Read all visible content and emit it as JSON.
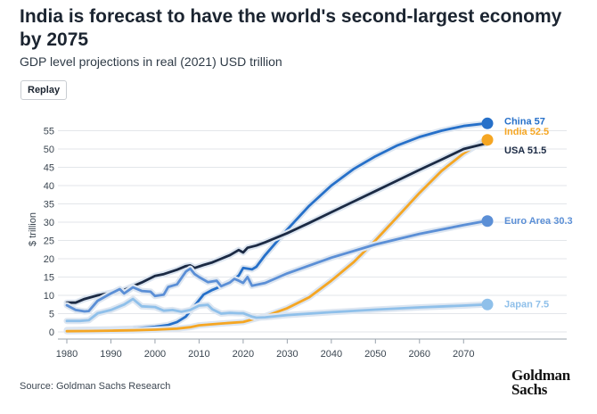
{
  "header": {
    "title": "India is forecast to have the world's second-largest economy by 2075",
    "subtitle": "GDP level projections in real (2021) USD trillion",
    "replay_label": "Replay"
  },
  "footer": {
    "source": "Source: Goldman Sachs Research",
    "logo_line1": "Goldman",
    "logo_line2": "Sachs"
  },
  "chart_data": {
    "type": "line",
    "title": "India is forecast to have the world's second-largest economy by 2075",
    "subtitle": "GDP level projections in real (2021) USD trillion",
    "xlabel": "",
    "ylabel": "$ trillion",
    "xlim": [
      1980,
      2075
    ],
    "ylim": [
      0,
      57
    ],
    "x_ticks": [
      1980,
      1990,
      2000,
      2010,
      2020,
      2030,
      2040,
      2050,
      2060,
      2070
    ],
    "y_ticks": [
      0,
      5,
      10,
      15,
      20,
      25,
      30,
      35,
      40,
      45,
      50,
      55
    ],
    "grid": "horizontal",
    "series": [
      {
        "name": "China",
        "end_label": "China 57",
        "color": "#2670c9",
        "points": [
          [
            1980,
            0.5
          ],
          [
            1985,
            0.6
          ],
          [
            1990,
            0.7
          ],
          [
            1995,
            0.9
          ],
          [
            2000,
            1.4
          ],
          [
            2003,
            1.9
          ],
          [
            2005,
            2.7
          ],
          [
            2007,
            4.2
          ],
          [
            2009,
            7.2
          ],
          [
            2011,
            10.2
          ],
          [
            2013,
            11.5
          ],
          [
            2015,
            12.5
          ],
          [
            2017,
            13.6
          ],
          [
            2019,
            15.4
          ],
          [
            2020,
            17.5
          ],
          [
            2022,
            17.1
          ],
          [
            2023,
            17.8
          ],
          [
            2025,
            21
          ],
          [
            2030,
            28
          ],
          [
            2035,
            34.5
          ],
          [
            2040,
            40
          ],
          [
            2045,
            44.5
          ],
          [
            2050,
            48
          ],
          [
            2055,
            51
          ],
          [
            2060,
            53.3
          ],
          [
            2065,
            55
          ],
          [
            2070,
            56.3
          ],
          [
            2075,
            57
          ]
        ]
      },
      {
        "name": "India",
        "end_label": "India 52.5",
        "color": "#f5a623",
        "points": [
          [
            1980,
            0.2
          ],
          [
            1985,
            0.25
          ],
          [
            1990,
            0.35
          ],
          [
            1995,
            0.45
          ],
          [
            2000,
            0.6
          ],
          [
            2005,
            0.9
          ],
          [
            2008,
            1.3
          ],
          [
            2010,
            1.8
          ],
          [
            2015,
            2.3
          ],
          [
            2020,
            2.7
          ],
          [
            2022,
            3.4
          ],
          [
            2025,
            4.3
          ],
          [
            2030,
            6.5
          ],
          [
            2035,
            9.5
          ],
          [
            2040,
            14
          ],
          [
            2045,
            19
          ],
          [
            2050,
            25
          ],
          [
            2055,
            31.5
          ],
          [
            2060,
            38
          ],
          [
            2065,
            44
          ],
          [
            2070,
            48.8
          ],
          [
            2075,
            52.5
          ]
        ]
      },
      {
        "name": "USA",
        "end_label": "USA 51.5",
        "color": "#1b2a44",
        "points": [
          [
            1980,
            8
          ],
          [
            1982,
            8
          ],
          [
            1984,
            9
          ],
          [
            1987,
            10
          ],
          [
            1990,
            10.7
          ],
          [
            1993,
            11.5
          ],
          [
            1997,
            13.5
          ],
          [
            2000,
            15.3
          ],
          [
            2002,
            15.8
          ],
          [
            2005,
            17
          ],
          [
            2007,
            18
          ],
          [
            2008,
            18.2
          ],
          [
            2009,
            17.5
          ],
          [
            2011,
            18.3
          ],
          [
            2013,
            19
          ],
          [
            2015,
            20
          ],
          [
            2017,
            21
          ],
          [
            2019,
            22.4
          ],
          [
            2020,
            21.7
          ],
          [
            2021,
            23
          ],
          [
            2023,
            23.6
          ],
          [
            2025,
            24.5
          ],
          [
            2030,
            27
          ],
          [
            2035,
            29.8
          ],
          [
            2040,
            32.7
          ],
          [
            2045,
            35.6
          ],
          [
            2050,
            38.5
          ],
          [
            2055,
            41.4
          ],
          [
            2060,
            44.3
          ],
          [
            2065,
            47.1
          ],
          [
            2070,
            50
          ],
          [
            2075,
            51.5
          ]
        ]
      },
      {
        "name": "Euro Area",
        "end_label": "Euro Area 30.3",
        "color": "#5b8fd6",
        "points": [
          [
            1980,
            7.3
          ],
          [
            1982,
            6
          ],
          [
            1984,
            5.6
          ],
          [
            1985,
            5.7
          ],
          [
            1987,
            8.5
          ],
          [
            1990,
            10.5
          ],
          [
            1992,
            11.7
          ],
          [
            1993,
            10.5
          ],
          [
            1995,
            12.2
          ],
          [
            1997,
            11.2
          ],
          [
            1999,
            11
          ],
          [
            2000,
            9.8
          ],
          [
            2002,
            10.2
          ],
          [
            2003,
            12.3
          ],
          [
            2005,
            13
          ],
          [
            2007,
            16.5
          ],
          [
            2008,
            17.3
          ],
          [
            2009,
            15.8
          ],
          [
            2010,
            15
          ],
          [
            2012,
            13.6
          ],
          [
            2014,
            14
          ],
          [
            2015,
            12.5
          ],
          [
            2017,
            13.5
          ],
          [
            2018,
            14.5
          ],
          [
            2019,
            14
          ],
          [
            2020,
            13.4
          ],
          [
            2021,
            15
          ],
          [
            2022,
            12.6
          ],
          [
            2025,
            13.4
          ],
          [
            2030,
            16
          ],
          [
            2040,
            20.3
          ],
          [
            2050,
            23.9
          ],
          [
            2060,
            26.8
          ],
          [
            2070,
            29.2
          ],
          [
            2075,
            30.3
          ]
        ]
      },
      {
        "name": "Japan",
        "end_label": "Japan 7.5",
        "color": "#8fc0ea",
        "points": [
          [
            1980,
            3
          ],
          [
            1983,
            3
          ],
          [
            1985,
            3.2
          ],
          [
            1987,
            5.1
          ],
          [
            1990,
            6
          ],
          [
            1993,
            7.5
          ],
          [
            1995,
            9
          ],
          [
            1997,
            7
          ],
          [
            2000,
            6.8
          ],
          [
            2002,
            5.8
          ],
          [
            2004,
            6
          ],
          [
            2006,
            5.5
          ],
          [
            2008,
            6
          ],
          [
            2010,
            7.2
          ],
          [
            2012,
            7.4
          ],
          [
            2013,
            6.2
          ],
          [
            2015,
            5
          ],
          [
            2017,
            5.2
          ],
          [
            2019,
            5.1
          ],
          [
            2020,
            5.1
          ],
          [
            2022,
            4.2
          ],
          [
            2023,
            3.9
          ],
          [
            2025,
            4
          ],
          [
            2030,
            4.6
          ],
          [
            2040,
            5.4
          ],
          [
            2050,
            6.1
          ],
          [
            2060,
            6.7
          ],
          [
            2070,
            7.2
          ],
          [
            2075,
            7.5
          ]
        ]
      }
    ]
  }
}
